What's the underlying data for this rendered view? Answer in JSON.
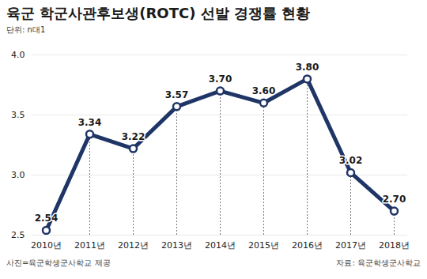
{
  "chart_data": {
    "type": "line",
    "title": "육군 학군사관후보생(ROTC) 선발 경쟁률 현황",
    "subtitle": "단위: n대1",
    "annotations": [
      "사진=육군학생군사학교 제공",
      "자료: 육군학생군사학교"
    ],
    "categories": [
      "2010년",
      "2011년",
      "2012년",
      "2013년",
      "2014년",
      "2015년",
      "2016년",
      "2017년",
      "2018년"
    ],
    "values": [
      2.54,
      3.34,
      3.22,
      3.57,
      3.7,
      3.6,
      3.8,
      3.02,
      2.7
    ],
    "value_labels": [
      "2.54",
      "3.34",
      "3.22",
      "3.57",
      "3.70",
      "3.60",
      "3.80",
      "3.02",
      "2.70"
    ],
    "color": "#1f3566",
    "marker": "circle",
    "ylim": [
      2.5,
      4.0
    ],
    "yticks": [
      2.5,
      {
        "value": 3,
        "label": "3.0"
      },
      3.5,
      {
        "value": 4,
        "label": "4.0"
      }
    ],
    "grid": true,
    "data_labels": true
  }
}
